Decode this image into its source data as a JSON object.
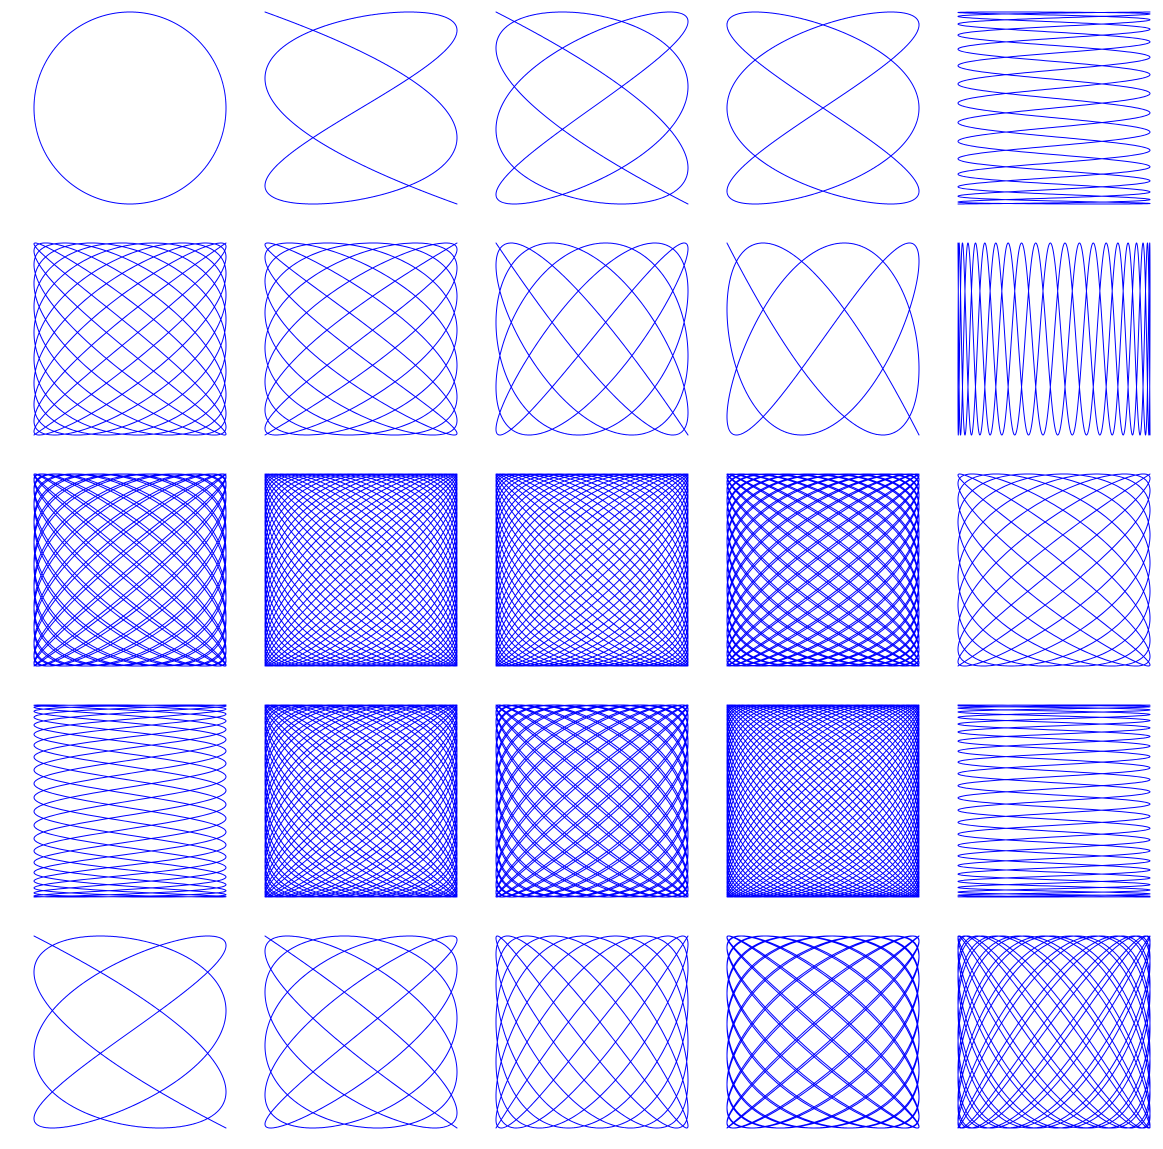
{
  "chart_data": {
    "type": "line",
    "description_kind": "grid of parametric curves",
    "grid": {
      "rows": 5,
      "cols": 5
    },
    "line_color": "#0000ff",
    "axes_visible": false,
    "xlim": [
      -1,
      1
    ],
    "ylim": [
      -1,
      1
    ],
    "panels": [
      {
        "row": 1,
        "col": 1,
        "a": 1,
        "b": 1,
        "delta": 1.5708
      },
      {
        "row": 1,
        "col": 2,
        "a": 5,
        "b": 3,
        "delta": 0.0
      },
      {
        "row": 1,
        "col": 3,
        "a": 7,
        "b": 5,
        "delta": 0.0
      },
      {
        "row": 1,
        "col": 4,
        "a": 3,
        "b": 2,
        "delta": 0.0
      },
      {
        "row": 1,
        "col": 5,
        "a": 31,
        "b": 3,
        "delta": 0.0
      },
      {
        "row": 2,
        "col": 1,
        "a": 23,
        "b": 19,
        "delta": 0.0
      },
      {
        "row": 2,
        "col": 2,
        "a": 17,
        "b": 13,
        "delta": 0.0
      },
      {
        "row": 2,
        "col": 3,
        "a": 9,
        "b": 11,
        "delta": 0.0
      },
      {
        "row": 2,
        "col": 4,
        "a": 5,
        "b": 7,
        "delta": 0.0
      },
      {
        "row": 2,
        "col": 5,
        "a": 3,
        "b": 41,
        "delta": 0.0
      },
      {
        "row": 3,
        "col": 1,
        "a": 27,
        "b": 23,
        "delta": 0.3
      },
      {
        "row": 3,
        "col": 2,
        "a": 31,
        "b": 29,
        "delta": 0.7
      },
      {
        "row": 3,
        "col": 3,
        "a": 29,
        "b": 27,
        "delta": 1.1
      },
      {
        "row": 3,
        "col": 4,
        "a": 37,
        "b": 29,
        "delta": 0.2
      },
      {
        "row": 3,
        "col": 5,
        "a": 21,
        "b": 17,
        "delta": 0.0
      },
      {
        "row": 4,
        "col": 1,
        "a": 43,
        "b": 7,
        "delta": 0.0
      },
      {
        "row": 4,
        "col": 2,
        "a": 33,
        "b": 29,
        "delta": 0.5
      },
      {
        "row": 4,
        "col": 3,
        "a": 31,
        "b": 27,
        "delta": 1.3
      },
      {
        "row": 4,
        "col": 4,
        "a": 37,
        "b": 35,
        "delta": 0.4
      },
      {
        "row": 4,
        "col": 5,
        "a": 49,
        "b": 3,
        "delta": 0.0
      },
      {
        "row": 5,
        "col": 1,
        "a": 7,
        "b": 5,
        "delta": 0.0
      },
      {
        "row": 5,
        "col": 2,
        "a": 11,
        "b": 9,
        "delta": 0.0
      },
      {
        "row": 5,
        "col": 3,
        "a": 15,
        "b": 19,
        "delta": 0.0
      },
      {
        "row": 5,
        "col": 4,
        "a": 19,
        "b": 17,
        "delta": 0.2
      },
      {
        "row": 5,
        "col": 5,
        "a": 17,
        "b": 23,
        "delta": 0.1
      }
    ]
  }
}
